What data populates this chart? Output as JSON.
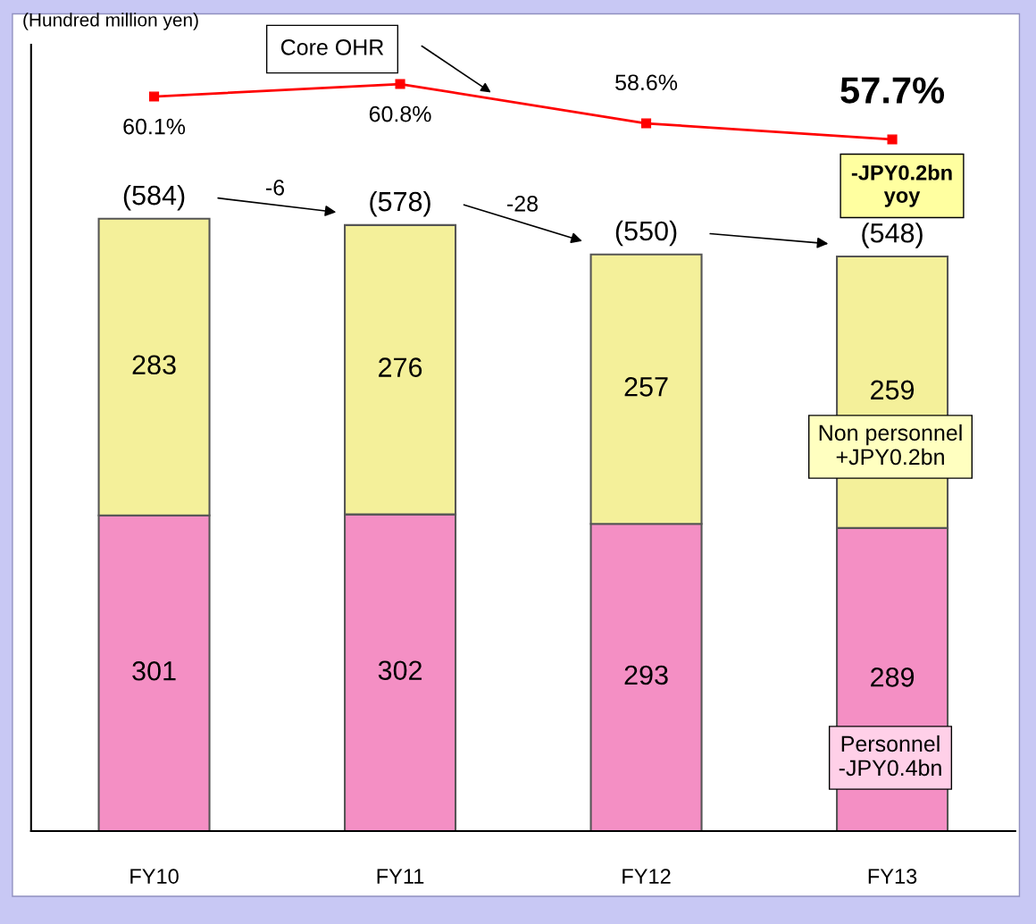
{
  "chart_data": {
    "type": "bar",
    "stacked": true,
    "categories": [
      "FY10",
      "FY11",
      "FY12",
      "FY13"
    ],
    "series": [
      {
        "color": "#f48fc4",
        "values": [
          301,
          302,
          293,
          289
        ]
      },
      {
        "color": "#f4f09a",
        "values": [
          283,
          276,
          257,
          259
        ]
      },
      {
        "type": "line",
        "axis": "y2",
        "color": "#ff0000",
        "values": [
          60.1,
          60.8,
          58.6,
          57.7
        ],
        "value_labels": [
          "60.1%",
          "60.8%",
          "58.6%",
          "57.7%"
        ]
      }
    ],
    "data_labels": true,
    "totals": [
      "(584)",
      "(578)",
      "(550)",
      "(548)"
    ],
    "ylim": [
      0,
      750
    ],
    "y2lim": [
      19,
      63
    ],
    "tick_labels": "x",
    "marker": "square",
    "legend": false,
    "grid": false,
    "annotations": [
      "(Hundred million yen)",
      "-6",
      "-28",
      "-JPY0.2bn\nyoy",
      "Non personnel\n+JPY0.2bn",
      "Personnel\n-JPY0.4bn",
      "Core OHR"
    ]
  }
}
